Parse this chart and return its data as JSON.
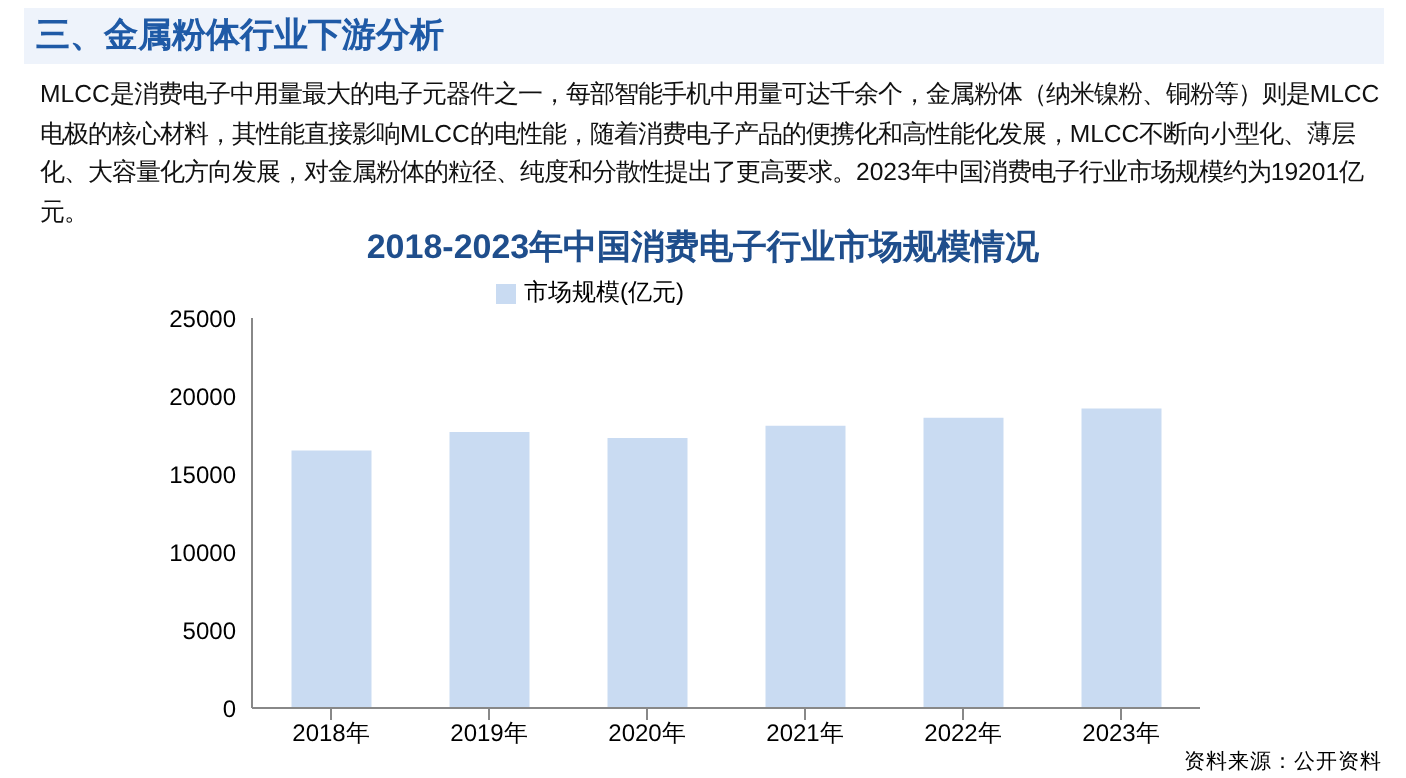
{
  "chart_data": {
    "type": "bar",
    "title": "2018-2023年中国消费电子行业市场规模情况",
    "annotations": [
      "三、金属粉体行业下游分析",
      "MLCC是消费电子中用量最大的电子元器件之一，每部智能手机中用量可达千余个，金属粉体（纳米镍粉、铜粉等）则是MLCC电极的核心材料，其性能直接影响MLCC的电性能，随着消费电子产品的便携化和高性能化发展，MLCC不断向小型化、薄层化、大容量化方向发展，对金属粉体的粒径、纯度和分散性提出了更高要求。2023年中国消费电子行业市场规模约为19201亿元。",
      "资料来源：公开资料"
    ],
    "categories": [
      "2018年",
      "2019年",
      "2020年",
      "2021年",
      "2022年",
      "2023年"
    ],
    "series": [
      {
        "name": "市场规模(亿元)",
        "color": "#c9dbf2",
        "values": [
          16500,
          17700,
          17300,
          18100,
          18600,
          19201
        ]
      }
    ],
    "ylim": [
      0,
      25000
    ],
    "yticks": [
      0,
      5000,
      10000,
      15000,
      20000,
      25000
    ],
    "grid": false,
    "legend": "top"
  }
}
